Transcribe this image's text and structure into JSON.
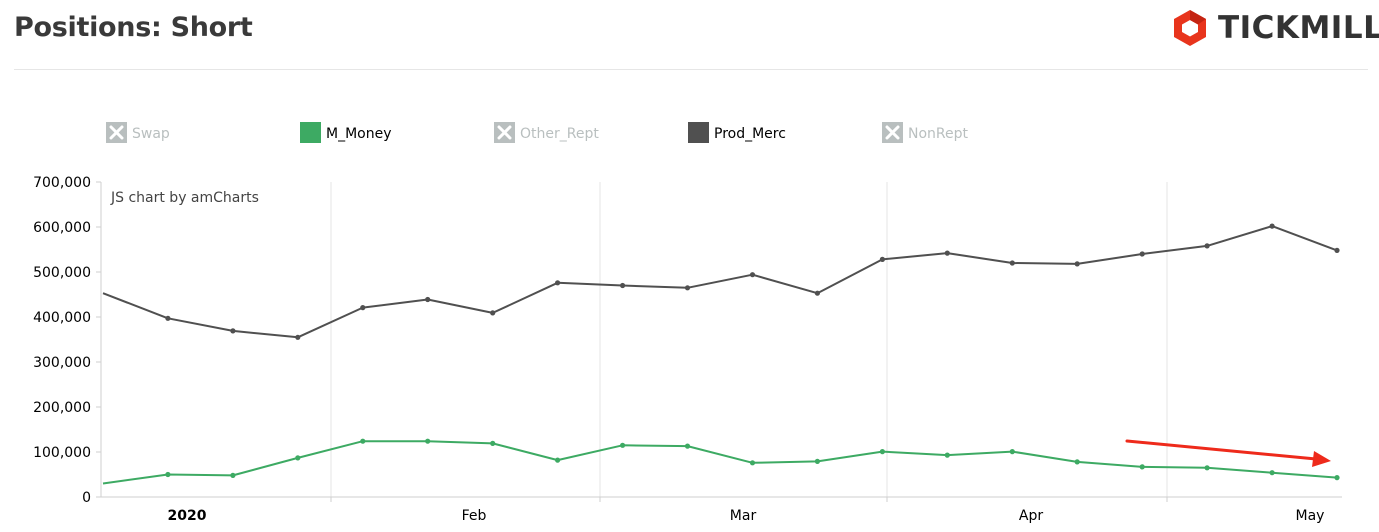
{
  "header": {
    "title": "Positions: Short",
    "brand_name": "TICKMILL"
  },
  "credit": "JS chart by amCharts",
  "colors": {
    "m_money": "#3daa63",
    "prod_merc": "#505050",
    "disabled": "#b9bfbf",
    "annotation_arrow": "#ee2a1b",
    "brand_red": "#e8341c"
  },
  "legend": [
    {
      "name": "Swap",
      "enabled": false
    },
    {
      "name": "M_Money",
      "enabled": true
    },
    {
      "name": "Other_Rept",
      "enabled": false
    },
    {
      "name": "Prod_Merc",
      "enabled": true
    },
    {
      "name": "NonRept",
      "enabled": false
    }
  ],
  "chart_data": {
    "type": "line",
    "ylim": [
      0,
      700000
    ],
    "yticks": [
      "0",
      "100,000",
      "200,000",
      "300,000",
      "400,000",
      "500,000",
      "600,000",
      "700,000"
    ],
    "xticks": [
      {
        "label": "2020",
        "bold": true
      },
      {
        "label": "Feb",
        "bold": false
      },
      {
        "label": "Mar",
        "bold": false
      },
      {
        "label": "Apr",
        "bold": false
      },
      {
        "label": "May",
        "bold": false
      }
    ],
    "grid": true,
    "legend_position": "top",
    "series": [
      {
        "name": "Prod_Merc",
        "values": [
          453000,
          397000,
          369000,
          355000,
          421000,
          439000,
          409000,
          476000,
          470000,
          465000,
          494000,
          453000,
          528000,
          542000,
          520000,
          518000,
          540000,
          558000,
          602000,
          548000
        ]
      },
      {
        "name": "M_Money",
        "values": [
          30000,
          50000,
          48000,
          87000,
          124000,
          124000,
          119000,
          82000,
          115000,
          113000,
          76000,
          79000,
          101000,
          93000,
          101000,
          78000,
          67000,
          65000,
          54000,
          43000
        ]
      }
    ]
  }
}
